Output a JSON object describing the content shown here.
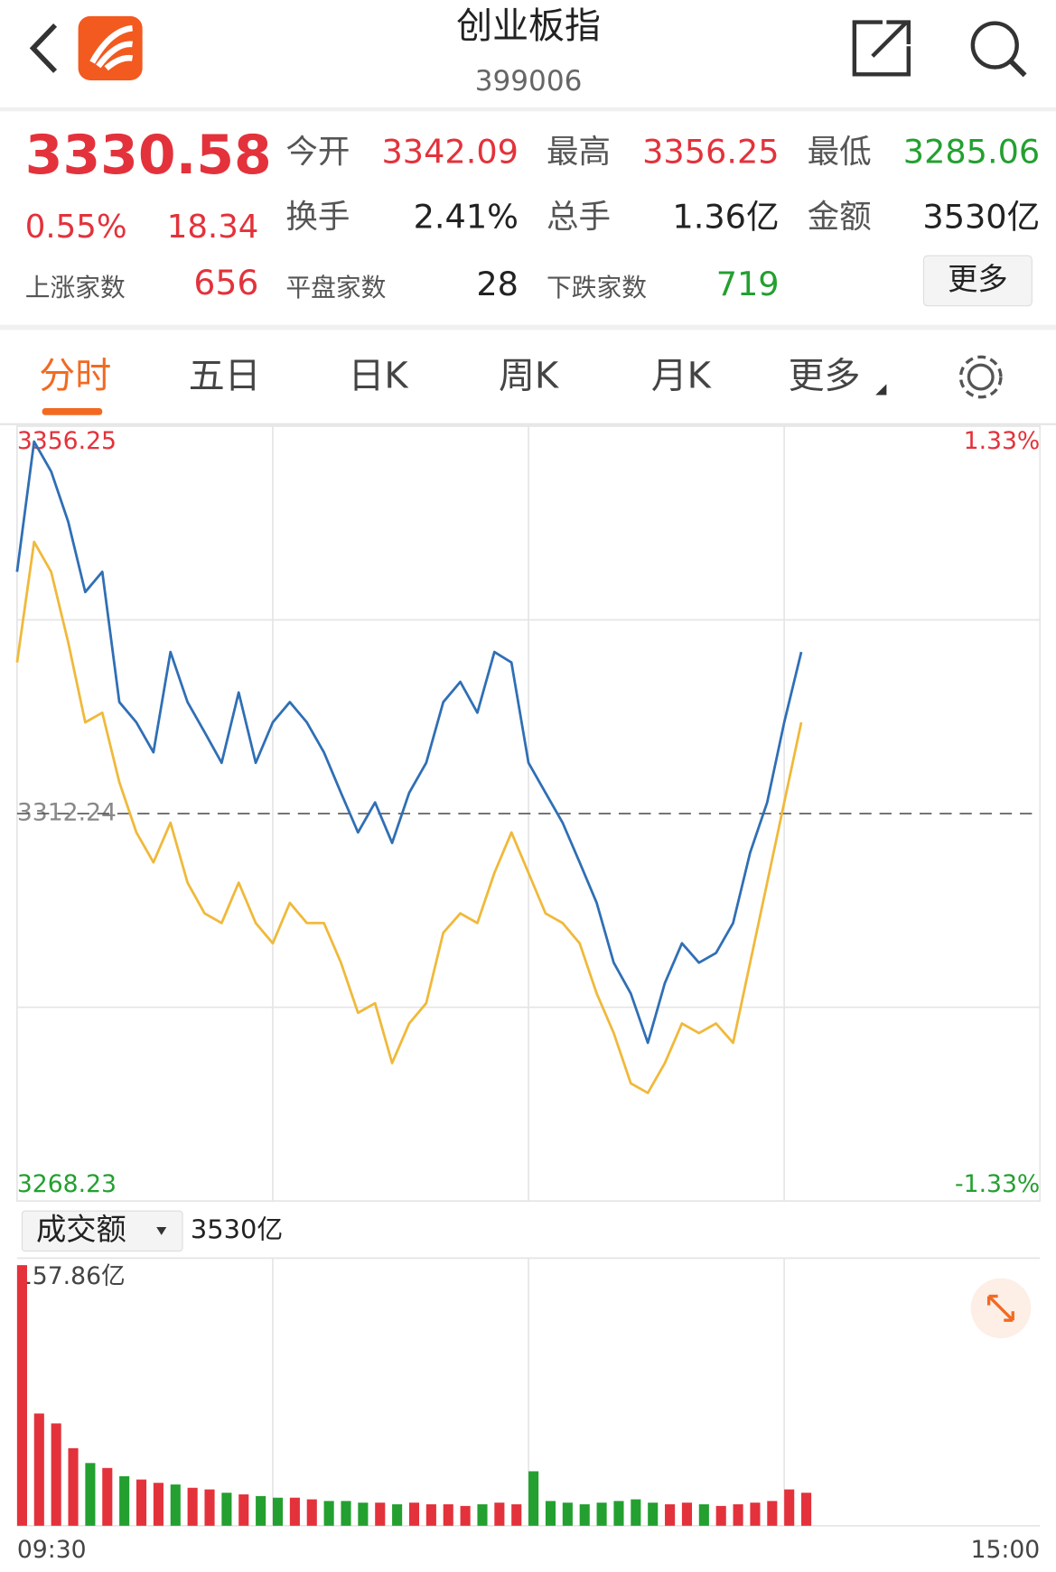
{
  "header": {
    "title": "创业板指",
    "code": "399006"
  },
  "quote": {
    "price": "3330.58",
    "change_pct": "0.55%",
    "change": "18.34",
    "up_label": "上涨家数",
    "up_count": "656",
    "more": "更多",
    "fields": [
      {
        "label": "今开",
        "value": "3342.09",
        "color": "#e3323b"
      },
      {
        "label": "最高",
        "value": "3356.25",
        "color": "#e3323b"
      },
      {
        "label": "最低",
        "value": "3285.06",
        "color": "#23a030"
      },
      {
        "label": "换手",
        "value": "2.41%",
        "color": "#222222"
      },
      {
        "label": "总手",
        "value": "1.36亿",
        "color": "#222222"
      },
      {
        "label": "金额",
        "value": "3530亿",
        "color": "#222222"
      },
      {
        "label": "平盘家数",
        "value": "28",
        "color": "#222222"
      },
      {
        "label": "下跌家数",
        "value": "719",
        "color": "#23a030"
      }
    ]
  },
  "tabs": [
    "分时",
    "五日",
    "日K",
    "周K",
    "月K",
    "更多"
  ],
  "chart_data": [
    {
      "type": "line",
      "x": [
        0,
        4,
        8,
        12,
        16,
        20,
        24,
        28,
        32,
        36,
        40,
        44,
        48,
        52,
        56,
        60,
        64,
        68,
        72,
        76,
        80,
        84,
        88,
        92,
        96,
        100,
        104,
        108,
        112,
        116,
        120,
        124,
        128,
        132,
        136,
        140,
        144,
        148,
        152,
        156,
        160,
        164,
        168,
        172,
        176,
        180,
        184
      ],
      "xlim": [
        0,
        240
      ],
      "ylim": [
        3268.23,
        3356.25
      ],
      "yticks": [
        3356.25,
        3312.24,
        3268.23
      ],
      "y2lim": [
        -1.33,
        1.33
      ],
      "y2ticks": [
        {
          "value": 1.33,
          "label": "1.33%"
        },
        {
          "value": -1.33,
          "label": "-1.33%"
        }
      ],
      "series": [
        {
          "color": "#2f6fb5",
          "values": [
            3339.7,
            3354.5,
            3351.1,
            3345.4,
            3337.4,
            3339.7,
            3324.9,
            3322.6,
            3319.2,
            3330.6,
            3324.9,
            3321.5,
            3318.0,
            3326.0,
            3318.0,
            3322.6,
            3324.9,
            3322.6,
            3319.2,
            3314.6,
            3310.1,
            3313.5,
            3308.9,
            3314.6,
            3318.0,
            3324.9,
            3327.2,
            3323.7,
            3330.6,
            3329.4,
            3318.0,
            3314.6,
            3311.2,
            3306.7,
            3302.1,
            3295.3,
            3291.8,
            3286.2,
            3293.0,
            3297.5,
            3295.3,
            3296.4,
            3299.8,
            3307.8,
            3313.5,
            3322.6,
            3330.6
          ]
        },
        {
          "color": "#f0b93a",
          "values": [
            3329.4,
            3343.1,
            3339.7,
            3331.7,
            3322.6,
            3323.7,
            3315.8,
            3310.1,
            3306.7,
            3311.2,
            3304.4,
            3300.9,
            3299.8,
            3304.4,
            3299.8,
            3297.5,
            3302.1,
            3299.8,
            3299.8,
            3295.3,
            3289.6,
            3290.7,
            3283.9,
            3288.4,
            3290.7,
            3298.7,
            3300.9,
            3299.8,
            3305.5,
            3310.1,
            3305.5,
            3300.9,
            3299.8,
            3297.5,
            3291.8,
            3287.3,
            3281.6,
            3280.5,
            3283.9,
            3288.4,
            3287.3,
            3288.4,
            3286.2,
            3295.3,
            3304.4,
            3313.5,
            3322.6
          ]
        }
      ]
    },
    {
      "type": "bar",
      "selector": "成交额",
      "total": "3530亿",
      "x": [
        0,
        4,
        8,
        12,
        16,
        20,
        24,
        28,
        32,
        36,
        40,
        44,
        48,
        52,
        56,
        60,
        64,
        68,
        72,
        76,
        80,
        84,
        88,
        92,
        96,
        100,
        104,
        108,
        112,
        116,
        120,
        124,
        128,
        132,
        136,
        140,
        144,
        148,
        152,
        156,
        160,
        164,
        168,
        172,
        176,
        180,
        184
      ],
      "xlim": [
        0,
        240
      ],
      "xticks": [
        {
          "value": 0,
          "label": "09:30"
        },
        {
          "value": 240,
          "label": "15:00"
        }
      ],
      "ylim": [
        0,
        157.86
      ],
      "yticks": [
        {
          "value": 157.86,
          "label": "157.86亿"
        }
      ],
      "values": [
        157.86,
        68,
        62,
        47,
        38,
        35,
        30,
        28,
        26,
        25,
        23,
        22,
        20,
        19,
        18,
        17,
        17,
        16,
        15,
        15,
        14,
        14,
        13,
        14,
        13,
        13,
        12,
        13,
        14,
        13,
        33,
        15,
        14,
        13,
        14,
        15,
        16,
        14,
        13,
        14,
        13,
        12,
        13,
        14,
        15,
        22,
        20
      ],
      "colors": [
        "#e3323b",
        "#e3323b",
        "#e3323b",
        "#e3323b",
        "#23a030",
        "#e3323b",
        "#23a030",
        "#e3323b",
        "#e3323b",
        "#23a030",
        "#e3323b",
        "#e3323b",
        "#23a030",
        "#e3323b",
        "#23a030",
        "#23a030",
        "#e3323b",
        "#e3323b",
        "#23a030",
        "#23a030",
        "#23a030",
        "#e3323b",
        "#23a030",
        "#e3323b",
        "#e3323b",
        "#e3323b",
        "#e3323b",
        "#23a030",
        "#e3323b",
        "#e3323b",
        "#23a030",
        "#23a030",
        "#23a030",
        "#23a030",
        "#23a030",
        "#23a030",
        "#23a030",
        "#23a030",
        "#e3323b",
        "#e3323b",
        "#23a030",
        "#e3323b",
        "#e3323b",
        "#e3323b",
        "#e3323b",
        "#e3323b",
        "#e3323b"
      ]
    }
  ]
}
